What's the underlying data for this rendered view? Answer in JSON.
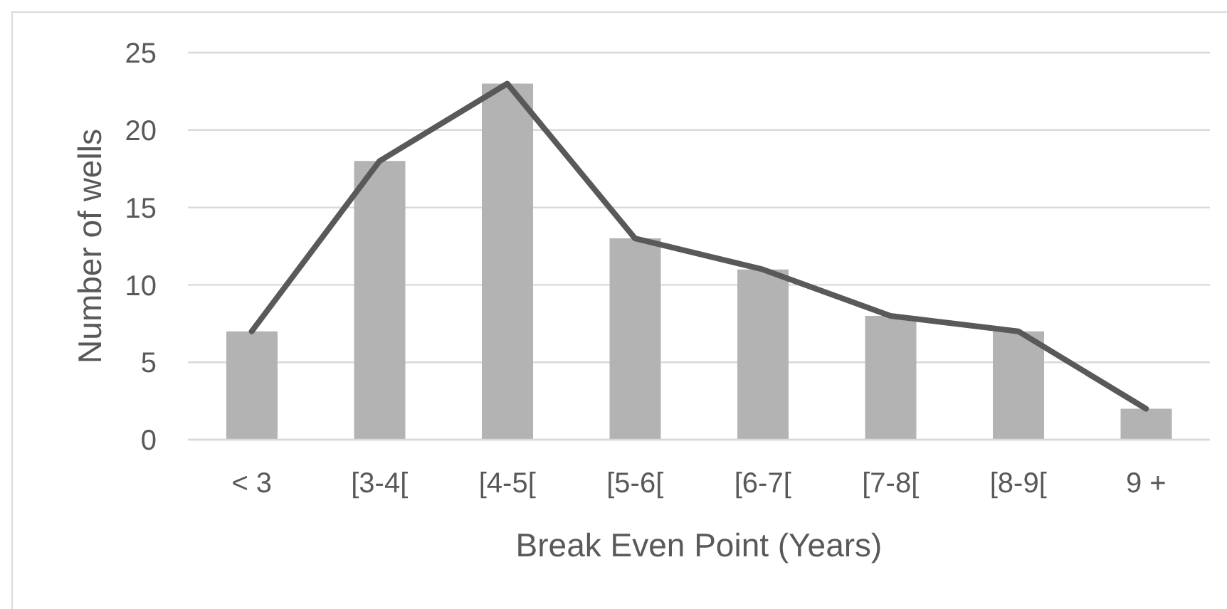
{
  "chart_data": {
    "type": "bar",
    "categories": [
      "< 3",
      "[3-4[",
      "[4-5[",
      "[5-6[",
      "[6-7[",
      "[7-8[",
      "[8-9[",
      "9 +"
    ],
    "series": [
      {
        "color": "#b3b3b3",
        "values": [
          7,
          18,
          23,
          13,
          11,
          8,
          7,
          2
        ]
      },
      {
        "type": "line",
        "color": "#595959",
        "values": [
          7,
          18,
          23,
          13,
          11,
          8,
          7,
          2
        ]
      }
    ],
    "xlabel": "Break Even Point (Years)",
    "ylabel": "Number of wells",
    "ylim": [
      0,
      25
    ],
    "yticks": [
      0,
      5,
      10,
      15,
      20,
      25
    ],
    "grid": "y"
  }
}
